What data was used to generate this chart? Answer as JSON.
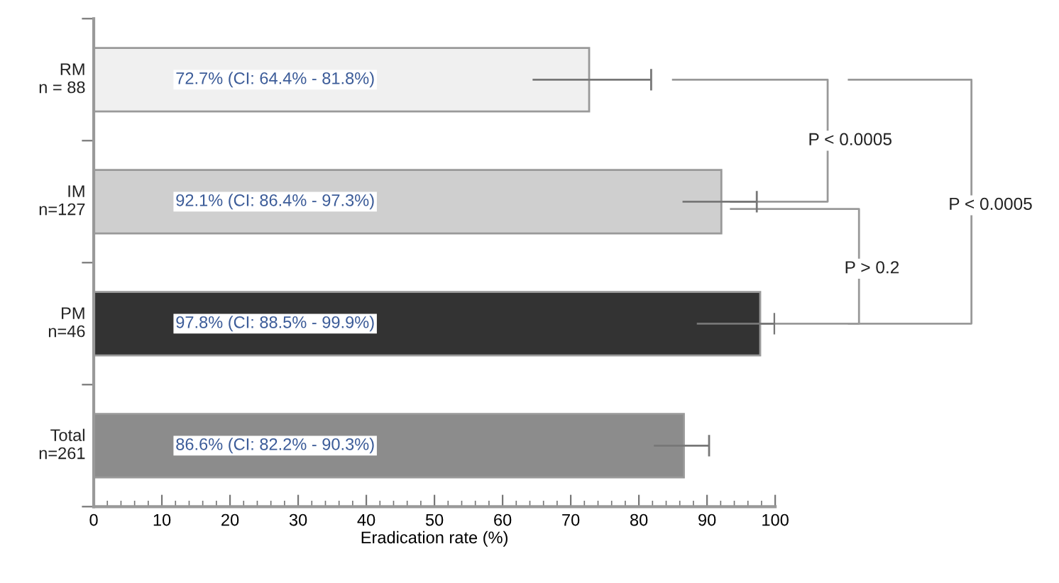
{
  "chart_data": {
    "type": "bar",
    "orientation": "horizontal",
    "categories": [
      "RM\nn = 88",
      "IM\nn=127",
      "PM\nn=46",
      "Total\nn=261"
    ],
    "values": [
      72.7,
      92.1,
      97.8,
      86.6
    ],
    "errors": [
      [
        64.4,
        81.8
      ],
      [
        86.4,
        97.3
      ],
      [
        88.5,
        99.9
      ],
      [
        82.2,
        90.3
      ]
    ],
    "colors": [
      "#f0f0f0",
      "#cfcfcf",
      "#333333",
      "#8c8c8c"
    ],
    "value_labels": [
      "72.7% (CI: 64.4% - 81.8%)",
      "92.1% (CI: 86.4% - 97.3%)",
      "97.8% (CI: 88.5% - 99.9%)",
      "86.6% (CI: 82.2% - 90.3%)"
    ],
    "xlabel": "Eradication rate (%)",
    "xlim": [
      0,
      100
    ],
    "xticks": [
      0,
      10,
      20,
      30,
      40,
      50,
      60,
      70,
      80,
      90,
      100
    ],
    "grid": false,
    "annotations": [
      "P < 0.0005",
      "P > 0.2",
      "P < 0.0005"
    ]
  }
}
